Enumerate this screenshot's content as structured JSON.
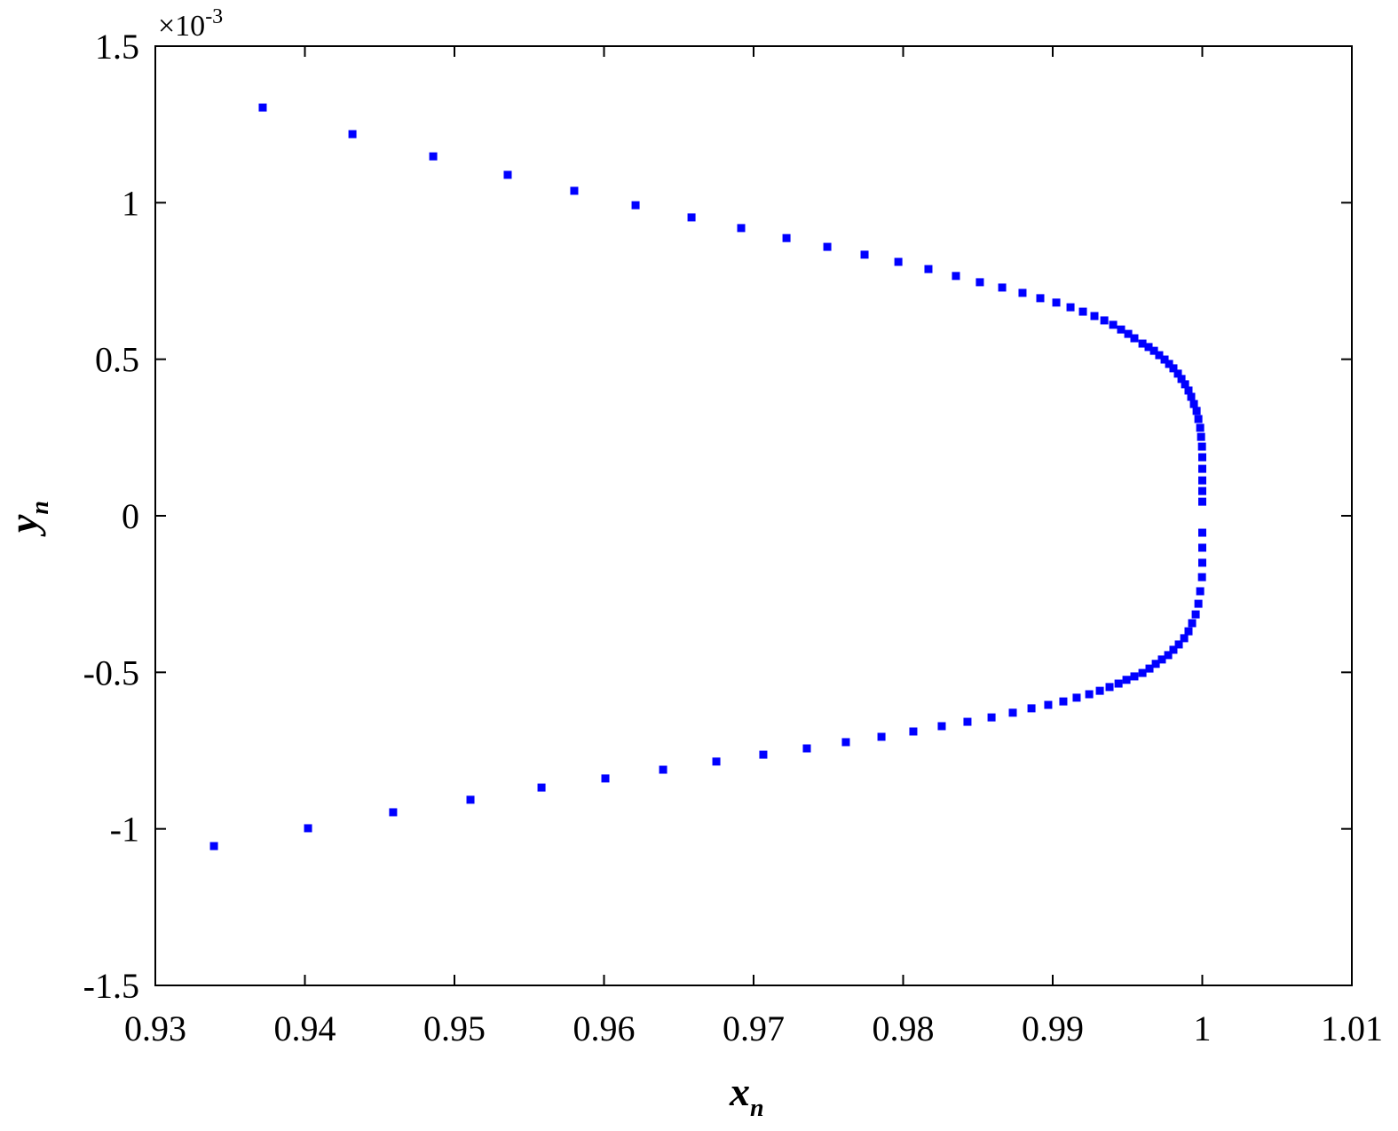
{
  "chart_data": {
    "type": "scatter",
    "xlabel": "x",
    "xlabel_sub": "n",
    "ylabel": "y",
    "ylabel_sub": "n",
    "y_multiplier": "×10",
    "y_multiplier_exp": "-3",
    "xlim": [
      0.93,
      1.01
    ],
    "xticks": [
      0.93,
      0.94,
      0.95,
      0.96,
      0.97,
      0.98,
      0.99,
      1,
      1.01
    ],
    "ylim": [
      -1.5,
      1.5
    ],
    "yticks": [
      -1.5,
      -1,
      -0.5,
      0,
      0.5,
      1,
      1.5
    ],
    "grid": false,
    "series": [
      {
        "color": "#0000ff",
        "x": [
          0.93718,
          0.94318,
          0.94858,
          0.95356,
          0.95801,
          0.96211,
          0.96585,
          0.96917,
          0.9722,
          0.97493,
          0.97742,
          0.97968,
          0.98169,
          0.98353,
          0.98513,
          0.98662,
          0.98798,
          0.98917,
          0.99024,
          0.99119,
          0.99202,
          0.99279,
          0.99345,
          0.99404,
          0.99457,
          0.99505,
          0.99546,
          0.996,
          0.99641,
          0.99677,
          0.99712,
          0.99748,
          0.99778,
          0.99807,
          0.99837,
          0.99861,
          0.99885,
          0.99908,
          0.99926,
          0.99944,
          0.99962,
          0.99974,
          0.99986,
          0.99992,
          0.99998,
          1.0,
          1.0,
          1.0,
          1.0,
          1.0,
          0.93392,
          0.94021,
          0.9459,
          0.95107,
          0.95582,
          0.96009,
          0.96395,
          0.96751,
          0.97065,
          0.97356,
          0.97617,
          0.97855,
          0.98068,
          0.98258,
          0.9843,
          0.98591,
          0.98733,
          0.98858,
          0.9897,
          0.99071,
          0.9916,
          0.99244,
          0.99315,
          0.9938,
          0.9944,
          0.99493,
          0.99546,
          0.996,
          0.99647,
          0.99689,
          0.9973,
          0.99772,
          0.99807,
          0.99843,
          0.99879,
          0.99908,
          0.99932,
          0.99956,
          0.99974,
          0.99986,
          0.99998,
          1.0,
          1.0,
          1.0
        ],
        "values": [
          1.304,
          1.219,
          1.148,
          1.089,
          1.038,
          0.992,
          0.953,
          0.919,
          0.887,
          0.859,
          0.834,
          0.811,
          0.788,
          0.766,
          0.746,
          0.729,
          0.712,
          0.695,
          0.681,
          0.666,
          0.652,
          0.638,
          0.624,
          0.61,
          0.595,
          0.581,
          0.567,
          0.55,
          0.539,
          0.527,
          0.513,
          0.499,
          0.485,
          0.471,
          0.454,
          0.437,
          0.42,
          0.4,
          0.38,
          0.357,
          0.335,
          0.309,
          0.281,
          0.252,
          0.221,
          0.187,
          0.15,
          0.113,
          0.079,
          0.045,
          -1.055,
          -0.998,
          -0.947,
          -0.907,
          -0.868,
          -0.839,
          -0.811,
          -0.785,
          -0.763,
          -0.743,
          -0.723,
          -0.706,
          -0.689,
          -0.672,
          -0.658,
          -0.644,
          -0.629,
          -0.615,
          -0.604,
          -0.593,
          -0.581,
          -0.57,
          -0.559,
          -0.547,
          -0.536,
          -0.524,
          -0.513,
          -0.502,
          -0.488,
          -0.473,
          -0.459,
          -0.445,
          -0.428,
          -0.411,
          -0.391,
          -0.369,
          -0.343,
          -0.315,
          -0.281,
          -0.241,
          -0.196,
          -0.15,
          -0.102,
          -0.054
        ]
      }
    ]
  }
}
